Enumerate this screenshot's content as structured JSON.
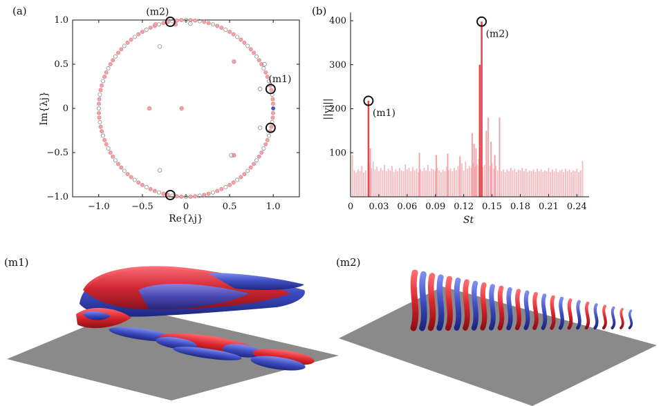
{
  "panel_labels": {
    "a": "(a)",
    "b": "(b)",
    "m1": "(m1)",
    "m2": "(m2)"
  },
  "colors": {
    "red": "#e04a52",
    "pink": "#f2a3a9",
    "blue": "#4757c2",
    "gray": "#8c8c8c",
    "marker": "#111111"
  },
  "chart_data": [
    {
      "type": "scatter",
      "panel": "(a)",
      "xlabel": "Re{λj}",
      "ylabel": "Im{λj}",
      "xlim": [
        -1.3,
        1.3
      ],
      "ylim": [
        -1.0,
        1.0
      ],
      "xticks": [
        -1.0,
        -0.5,
        0,
        0.5,
        1.0
      ],
      "yticks": [
        -1.0,
        -0.5,
        0,
        0.5,
        1.0
      ],
      "xtick_labels": [
        "−1.0",
        "−0.5",
        "0",
        "0.5",
        "1.0"
      ],
      "ytick_labels": [
        "−1.0",
        "−0.5",
        "0",
        "0.5",
        "1.0"
      ],
      "unit_circle_angles_deg": [
        0,
        3,
        6,
        9,
        12,
        15,
        18,
        21,
        24,
        27,
        30,
        33,
        36,
        39,
        42,
        45,
        48,
        51,
        54,
        57,
        60,
        63,
        66,
        69,
        72,
        75,
        78,
        81,
        84,
        87,
        90,
        93,
        96,
        99,
        102,
        105,
        108,
        111,
        114,
        117,
        120,
        123,
        126,
        129,
        132,
        135,
        138,
        141,
        144,
        147,
        150,
        153,
        156,
        159,
        162,
        165,
        168,
        171,
        174,
        177,
        180,
        183,
        186,
        189,
        192,
        195,
        198,
        201,
        204,
        207,
        210,
        213,
        216,
        219,
        222,
        225,
        228,
        231,
        234,
        237,
        240,
        243,
        246,
        249,
        252,
        255,
        258,
        261,
        264,
        267,
        270,
        273,
        276,
        279,
        282,
        285,
        288,
        291,
        294,
        297,
        300,
        303,
        306,
        309,
        312,
        315,
        318,
        321,
        324,
        327,
        330,
        333,
        336,
        339,
        342,
        345,
        348,
        351,
        354,
        357
      ],
      "interior_points_pink": [
        [
          -0.42,
          0
        ],
        [
          0.55,
          0.53
        ],
        [
          0.55,
          -0.53
        ],
        [
          -0.05,
          0
        ],
        [
          -0.35,
          0.95
        ],
        [
          -0.12,
          0.95
        ]
      ],
      "interior_points_open": [
        [
          -0.3,
          0.7
        ],
        [
          -0.3,
          -0.7
        ],
        [
          0.85,
          0.22
        ],
        [
          0.85,
          -0.22
        ],
        [
          0.52,
          -0.53
        ],
        [
          0.05,
          0.96
        ],
        [
          0.9,
          0.5
        ]
      ],
      "blue_point": [
        1.0,
        0.0
      ],
      "highlighted": [
        {
          "label": "(m2)",
          "x": -0.18,
          "y": 0.98
        },
        {
          "label": "(m1)",
          "x": 0.97,
          "y": 0.22
        },
        {
          "label": "",
          "x": 0.97,
          "y": -0.22
        },
        {
          "label": "",
          "x": -0.18,
          "y": -0.98
        }
      ]
    },
    {
      "type": "bar",
      "panel": "(b)",
      "xlabel": "St",
      "ylabel": "||vj||",
      "xlim": [
        0,
        0.25
      ],
      "ylim": [
        0,
        400
      ],
      "xticks": [
        0,
        0.03,
        0.06,
        0.09,
        0.12,
        0.15,
        0.18,
        0.21,
        0.24
      ],
      "xtick_labels": [
        "0",
        "0.03",
        "0.06",
        "0.09",
        "0.12",
        "0.15",
        "0.18",
        "0.21",
        "0.24"
      ],
      "yticks": [
        100,
        200,
        300,
        400
      ],
      "ytick_labels": [
        "100",
        "200",
        "300",
        "400"
      ],
      "background_bars": [
        [
          0.002,
          95
        ],
        [
          0.004,
          60
        ],
        [
          0.006,
          55
        ],
        [
          0.008,
          62
        ],
        [
          0.01,
          58
        ],
        [
          0.012,
          70
        ],
        [
          0.014,
          55
        ],
        [
          0.016,
          60
        ],
        [
          0.02,
          75
        ],
        [
          0.022,
          65
        ],
        [
          0.024,
          80
        ],
        [
          0.026,
          62
        ],
        [
          0.028,
          68
        ],
        [
          0.03,
          58
        ],
        [
          0.032,
          66
        ],
        [
          0.034,
          60
        ],
        [
          0.036,
          72
        ],
        [
          0.038,
          58
        ],
        [
          0.04,
          64
        ],
        [
          0.042,
          60
        ],
        [
          0.044,
          70
        ],
        [
          0.046,
          56
        ],
        [
          0.048,
          62
        ],
        [
          0.05,
          58
        ],
        [
          0.052,
          66
        ],
        [
          0.054,
          60
        ],
        [
          0.056,
          58
        ],
        [
          0.058,
          74
        ],
        [
          0.06,
          62
        ],
        [
          0.062,
          66
        ],
        [
          0.064,
          58
        ],
        [
          0.066,
          68
        ],
        [
          0.068,
          60
        ],
        [
          0.07,
          64
        ],
        [
          0.072,
          56
        ],
        [
          0.074,
          62
        ],
        [
          0.076,
          58
        ],
        [
          0.078,
          66
        ],
        [
          0.08,
          60
        ],
        [
          0.082,
          72
        ],
        [
          0.084,
          58
        ],
        [
          0.086,
          64
        ],
        [
          0.088,
          62
        ],
        [
          0.09,
          58
        ],
        [
          0.092,
          66
        ],
        [
          0.094,
          60
        ],
        [
          0.096,
          56
        ],
        [
          0.098,
          62
        ],
        [
          0.1,
          58
        ],
        [
          0.102,
          68
        ],
        [
          0.104,
          60
        ],
        [
          0.106,
          64
        ],
        [
          0.108,
          58
        ],
        [
          0.11,
          66
        ],
        [
          0.112,
          60
        ],
        [
          0.114,
          70
        ],
        [
          0.116,
          64
        ],
        [
          0.118,
          76
        ],
        [
          0.12,
          60
        ],
        [
          0.122,
          80
        ],
        [
          0.124,
          64
        ],
        [
          0.126,
          70
        ],
        [
          0.128,
          66
        ],
        [
          0.13,
          78
        ],
        [
          0.132,
          68
        ],
        [
          0.134,
          74
        ],
        [
          0.136,
          86
        ],
        [
          0.14,
          68
        ],
        [
          0.142,
          72
        ],
        [
          0.146,
          62
        ],
        [
          0.148,
          70
        ],
        [
          0.15,
          76
        ],
        [
          0.152,
          64
        ],
        [
          0.154,
          70
        ],
        [
          0.156,
          60
        ],
        [
          0.158,
          82
        ],
        [
          0.16,
          58
        ],
        [
          0.162,
          62
        ],
        [
          0.164,
          56
        ],
        [
          0.166,
          62
        ],
        [
          0.168,
          58
        ],
        [
          0.17,
          66
        ],
        [
          0.172,
          60
        ],
        [
          0.174,
          64
        ],
        [
          0.176,
          56
        ],
        [
          0.178,
          62
        ],
        [
          0.18,
          60
        ],
        [
          0.182,
          66
        ],
        [
          0.184,
          58
        ],
        [
          0.186,
          64
        ],
        [
          0.188,
          56
        ],
        [
          0.19,
          60
        ],
        [
          0.192,
          58
        ],
        [
          0.194,
          62
        ],
        [
          0.196,
          56
        ],
        [
          0.198,
          64
        ],
        [
          0.2,
          58
        ],
        [
          0.202,
          62
        ],
        [
          0.204,
          56
        ],
        [
          0.206,
          60
        ],
        [
          0.208,
          58
        ],
        [
          0.21,
          66
        ],
        [
          0.212,
          56
        ],
        [
          0.214,
          62
        ],
        [
          0.216,
          58
        ],
        [
          0.218,
          64
        ],
        [
          0.22,
          56
        ],
        [
          0.222,
          60
        ],
        [
          0.224,
          62
        ],
        [
          0.226,
          56
        ],
        [
          0.228,
          64
        ],
        [
          0.23,
          58
        ],
        [
          0.232,
          62
        ],
        [
          0.234,
          56
        ],
        [
          0.236,
          60
        ],
        [
          0.238,
          58
        ],
        [
          0.24,
          64
        ],
        [
          0.242,
          56
        ],
        [
          0.244,
          60
        ],
        [
          0.246,
          82
        ]
      ],
      "medium_bars": [
        [
          0.021,
          110
        ],
        [
          0.073,
          100
        ],
        [
          0.091,
          95
        ],
        [
          0.103,
          98
        ],
        [
          0.116,
          92
        ],
        [
          0.129,
          145
        ],
        [
          0.131,
          120
        ],
        [
          0.133,
          110
        ],
        [
          0.144,
          150
        ],
        [
          0.146,
          180
        ],
        [
          0.149,
          125
        ],
        [
          0.153,
          95
        ],
        [
          0.158,
          180
        ]
      ],
      "peak_bars": [
        {
          "label": "(m1)",
          "x": 0.019,
          "y": 218
        },
        {
          "label": "",
          "x": 0.137,
          "y": 300
        },
        {
          "label": "(m2)",
          "x": 0.139,
          "y": 398
        }
      ]
    }
  ]
}
